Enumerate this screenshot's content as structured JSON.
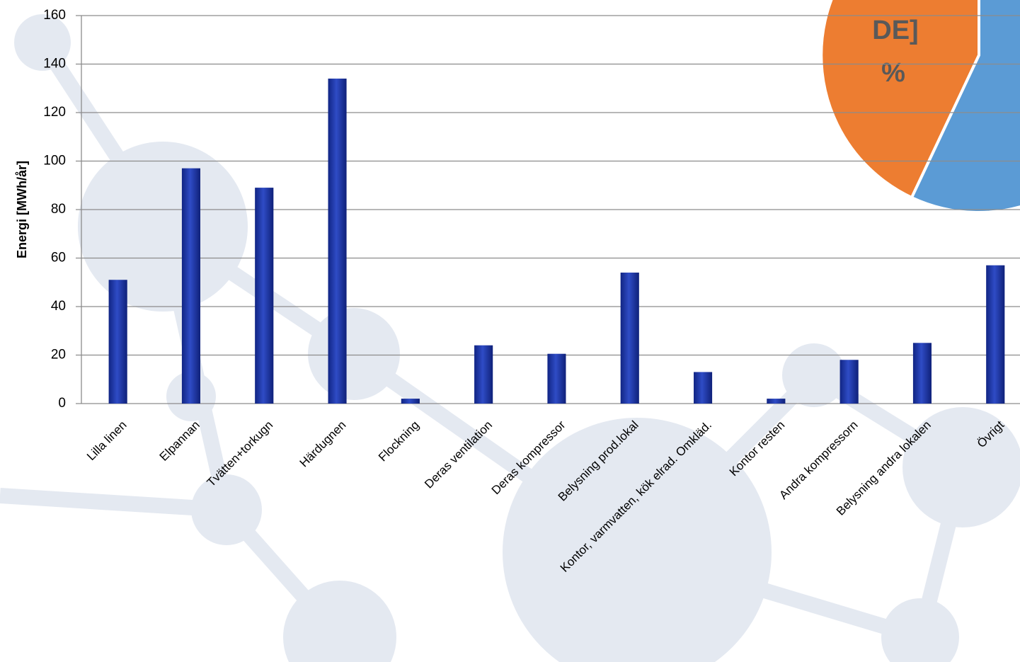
{
  "chart_data": {
    "type": "bar",
    "y_label": "Energi [MWh/år]",
    "categories": [
      "Lilla linen",
      "Elpannan",
      "Tvätten+torkugn",
      "Härdugnen",
      "Flockning",
      "Deras ventilation",
      "Deras kompressor",
      "Belysning prod.lokal",
      "Kontor, varmvatten, kök elrad. Omkläd.",
      "Kontor resten",
      "Andra kompressorn",
      "Belysning andra lokalen",
      "Övrigt"
    ],
    "values": [
      51,
      97,
      89,
      134,
      2,
      24,
      20.5,
      54,
      13,
      2,
      18,
      25,
      57
    ],
    "color": "#1c36a6",
    "ylim": [
      0,
      160
    ],
    "yticks": [
      0,
      20,
      40,
      60,
      80,
      100,
      120,
      140,
      160
    ],
    "grid": true
  },
  "overlay": {
    "pie_texts": [
      "DE]",
      "%"
    ]
  }
}
